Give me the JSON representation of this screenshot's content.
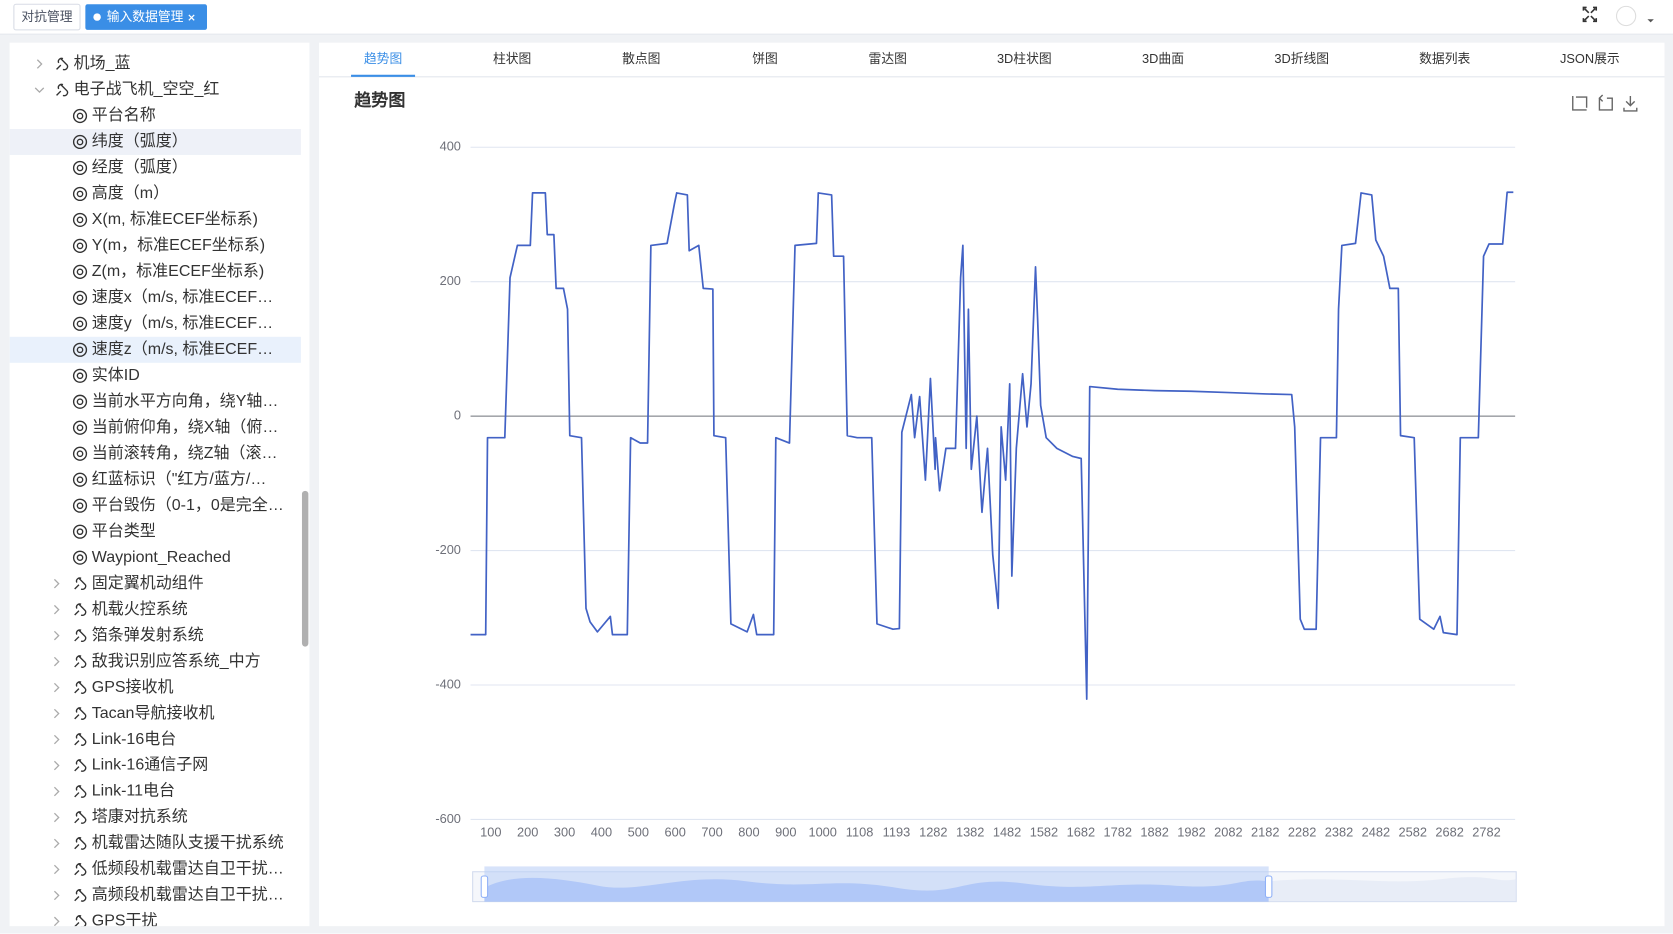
{
  "tabs": [
    {
      "label": "对抗管理"
    },
    {
      "label": "输入数据管理",
      "active": true
    }
  ],
  "tree": [
    {
      "label": "机场_蓝"
    },
    {
      "label": "电子战飞机_空空_红",
      "fields": [
        "平台名称",
        "纬度（弧度）",
        "经度（弧度）",
        "高度（m）",
        "X(m, 标准ECEF坐标系)",
        "Y(m，标准ECEF坐标系)",
        "Z(m，标准ECEF坐标系)",
        "速度x（m/s, 标准ECEF…",
        "速度y（m/s, 标准ECEF…",
        "速度z（m/s, 标准ECEF…",
        "实体ID",
        "当前水平方向角，绕Y轴…",
        "当前俯仰角，绕X轴（俯…",
        "当前滚转角，绕Z轴（滚…",
        "红蓝标识（\"红方/蓝方/…",
        "平台毁伤（0-1，0是完全…",
        "平台类型",
        "Waypiont_Reached"
      ],
      "components": [
        "固定翼机动组件",
        "机载火控系统",
        "箔条弹发射系统",
        "敌我识别应答系统_中方",
        "GPS接收机",
        "Tacan导航接收机",
        "Link-16电台",
        "Link-16通信子网",
        "Link-11电台",
        "塔康对抗系统",
        "机载雷达随队支援干扰系统",
        "低频段机载雷达自卫干扰…",
        "高频段机载雷达自卫干扰…",
        "GPS干扰"
      ]
    }
  ],
  "chart_tabs": [
    "趋势图",
    "柱状图",
    "散点图",
    "饼图",
    "雷达图",
    "3D柱状图",
    "3D曲面",
    "3D折线图",
    "数据列表",
    "JSON展示"
  ],
  "chart_data": {
    "type": "line",
    "title": "趋势图",
    "ylim": [
      -600,
      400
    ],
    "yticks": [
      -600,
      -400,
      -200,
      0,
      200,
      400
    ],
    "xticks": [
      100,
      200,
      300,
      400,
      500,
      600,
      700,
      800,
      900,
      1000,
      1108,
      1193,
      1282,
      1382,
      1482,
      1582,
      1682,
      1782,
      1882,
      1982,
      2082,
      2182,
      2282,
      2382,
      2482,
      2582,
      2682,
      2782
    ],
    "grid": true,
    "series": [
      {
        "color": "#4262c5",
        "x": [
          45,
          86,
          91,
          138,
          152,
          172,
          207,
          213,
          248,
          253,
          271,
          277,
          297,
          308,
          314,
          346,
          358,
          369,
          389,
          424,
          430,
          470,
          479,
          505,
          525,
          534,
          578,
          598,
          604,
          633,
          638,
          664,
          676,
          702,
          705,
          737,
          751,
          795,
          812,
          821,
          867,
          873,
          910,
          925,
          983,
          988,
          1026,
          1032,
          1061,
          1072,
          1101,
          1136,
          1148,
          1185,
          1200,
          1206,
          1229,
          1237,
          1249,
          1263,
          1275,
          1287,
          1288,
          1299,
          1316,
          1342,
          1356,
          1362,
          1371,
          1377,
          1385,
          1400,
          1414,
          1429,
          1443,
          1458,
          1466,
          1478,
          1489,
          1495,
          1507,
          1524,
          1536,
          1547,
          1559,
          1565,
          1573,
          1588,
          1617,
          1660,
          1683,
          1698,
          1706,
          1782,
          1883,
          1981,
          2083,
          2184,
          2254,
          2262,
          2277,
          2288,
          2320,
          2332,
          2375,
          2381,
          2390,
          2427,
          2442,
          2471,
          2482,
          2503,
          2520,
          2543,
          2549,
          2586,
          2601,
          2639,
          2656,
          2665,
          2702,
          2711,
          2760,
          2774,
          2789,
          2826,
          2838,
          2855
        ],
        "values": [
          -325,
          -325,
          -32,
          -32,
          206,
          254,
          254,
          332,
          332,
          270,
          270,
          190,
          190,
          159,
          -29,
          -32,
          -286,
          -306,
          -321,
          -298,
          -325,
          -325,
          -32,
          -40,
          -40,
          254,
          257,
          316,
          332,
          329,
          246,
          254,
          190,
          189,
          -29,
          -32,
          -309,
          -321,
          -295,
          -325,
          -325,
          -32,
          -40,
          254,
          257,
          332,
          329,
          238,
          238,
          -29,
          -32,
          -32,
          -309,
          -317,
          -316,
          -24,
          32,
          -32,
          29,
          -95,
          56,
          -79,
          -32,
          -111,
          -48,
          -48,
          206,
          254,
          -48,
          159,
          -79,
          0,
          -143,
          -48,
          -206,
          -286,
          -16,
          -95,
          48,
          -238,
          -48,
          63,
          -16,
          48,
          222,
          143,
          16,
          -32,
          -48,
          -60,
          -63,
          -421,
          44,
          40,
          38,
          37,
          35,
          33,
          32,
          -16,
          -302,
          -317,
          -317,
          -32,
          -32,
          159,
          254,
          257,
          332,
          329,
          262,
          238,
          190,
          190,
          -29,
          -32,
          -302,
          -317,
          -298,
          -322,
          -325,
          -32,
          -32,
          238,
          256,
          256,
          333,
          333
        ]
      }
    ]
  }
}
